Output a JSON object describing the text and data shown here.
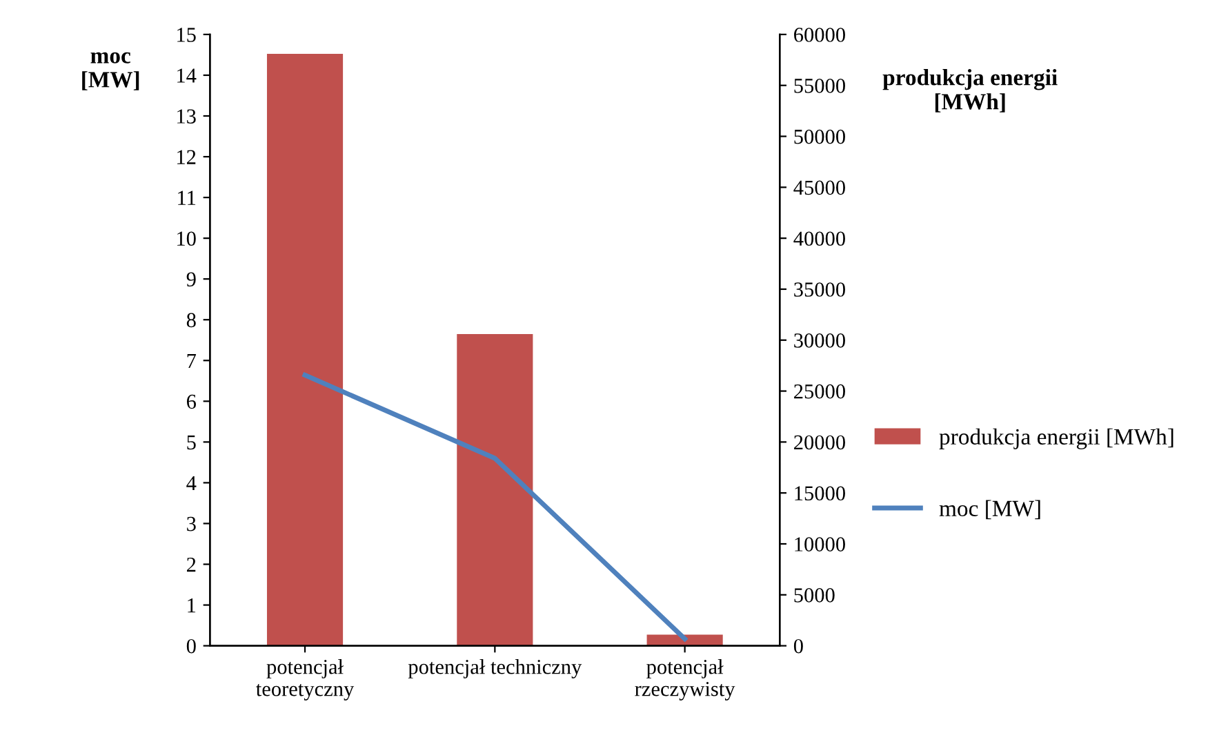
{
  "chart_data": {
    "type": "bar",
    "categories": [
      "potencjał teoretyczny",
      "potencjał techniczny",
      "potencjał rzeczywisty"
    ],
    "ylabel": "moc\n[MW]",
    "y2label": "produkcja energii\n[MWh]",
    "series": [
      {
        "name": "produkcja energii [MWh]",
        "axis": "y2",
        "color": "#c0504d",
        "values": [
          58100,
          30600,
          1100
        ]
      },
      {
        "name": "moc [MW]",
        "type": "line",
        "color": "#4f81bd",
        "values": [
          6.64,
          4.6,
          0.17
        ]
      }
    ],
    "ylim": [
      0,
      15
    ],
    "yticks": [
      0,
      1,
      2,
      3,
      4,
      5,
      6,
      7,
      8,
      9,
      10,
      11,
      12,
      13,
      14,
      15
    ],
    "y2lim": [
      0,
      60000
    ],
    "y2ticks": [
      0,
      5000,
      10000,
      15000,
      20000,
      25000,
      30000,
      35000,
      40000,
      45000,
      50000,
      55000,
      60000
    ],
    "legend": "right",
    "grid": false,
    "marker": "none",
    "line_style": "solid"
  }
}
